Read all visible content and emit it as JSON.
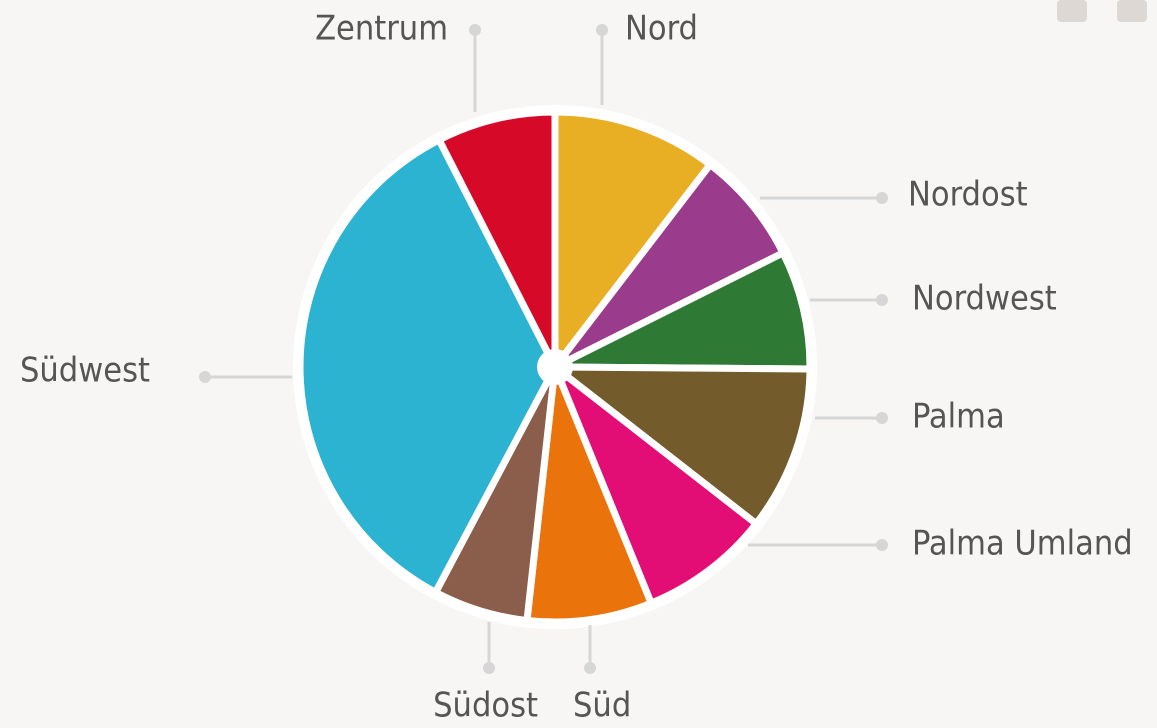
{
  "chart_data": {
    "type": "pie",
    "categories": [
      "Nord",
      "Nordost",
      "Nordwest",
      "Palma",
      "Palma Umland",
      "Süd",
      "Südost",
      "Südwest",
      "Zentrum"
    ],
    "values": [
      10.4,
      7.2,
      7.5,
      10.4,
      8.3,
      7.9,
      6,
      34.7,
      7.5
    ],
    "colors": [
      "#e8ae24",
      "#9b3b8c",
      "#2e7a35",
      "#735b2b",
      "#e20e75",
      "#ea730b",
      "#8a5e4b",
      "#2bb3d1",
      "#d60a28"
    ]
  }
}
